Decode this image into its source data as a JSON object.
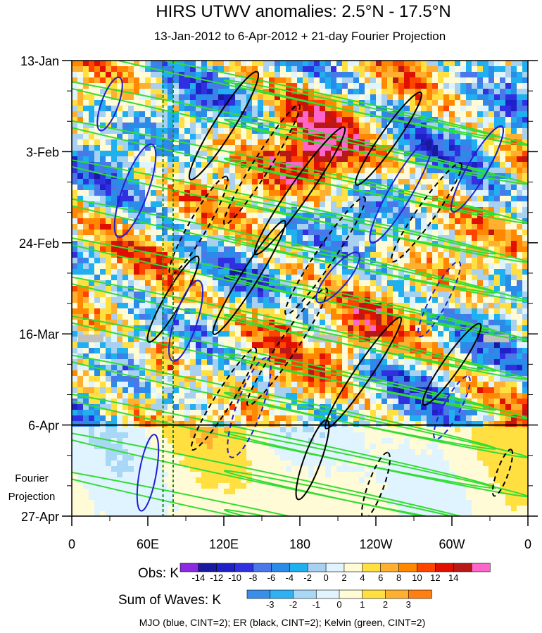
{
  "chart_data": {
    "type": "heatmap",
    "title": "HIRS UTWV anomalies: 2.5°N - 17.5°N",
    "subtitle": "13-Jan-2012 to 6-Apr-2012 + 21-day Fourier Projection",
    "y_tick_labels": [
      "13-Jan",
      "3-Feb",
      "24-Feb",
      "16-Mar",
      "6-Apr",
      "27-Apr"
    ],
    "x_tick_labels": [
      "0",
      "60E",
      "120E",
      "180",
      "120W",
      "60W",
      "0"
    ],
    "xlim": [
      0,
      360
    ],
    "ylim_days": [
      0,
      105
    ],
    "y_tick_days": [
      0,
      21,
      42,
      63,
      84,
      105
    ],
    "x_tick_lon": [
      0,
      60,
      120,
      180,
      240,
      300,
      360
    ],
    "forecast_start_day": 84,
    "projection_label": [
      "Fourier",
      "Projection"
    ],
    "obs_colorbar": {
      "label": "Obs: K",
      "ticks": [
        "-14",
        "-12",
        "-10",
        "-8",
        "-6",
        "-4",
        "-2",
        "0",
        "2",
        "4",
        "6",
        "8",
        "10",
        "12",
        "14"
      ],
      "colors": [
        "#8a2be2",
        "#1a1aa0",
        "#2020c8",
        "#3030e0",
        "#4a78e8",
        "#2a8ce8",
        "#20b0f0",
        "#a8d0f0",
        "#e0f4ff",
        "#fffbd6",
        "#ffe040",
        "#ffb030",
        "#ff8800",
        "#ff4400",
        "#e01000",
        "#b81818",
        "#ff66cc"
      ]
    },
    "waves_colorbar": {
      "label": "Sum of Waves: K",
      "ticks": [
        "-3",
        "-2",
        "-1",
        "0",
        "1",
        "2",
        "3"
      ],
      "colors": [
        "#3a8ee8",
        "#30b0f0",
        "#a8d8f5",
        "#e0f4ff",
        "#fffbd6",
        "#ffe040",
        "#ffb030",
        "#ff8010"
      ]
    },
    "contour_legend": "MJO (blue, CINT=2); ER (black, CINT=2); Kelvin (green, CINT=2)",
    "series": [
      {
        "name": "MJO",
        "color": "#2020d0"
      },
      {
        "name": "ER",
        "color": "#000000"
      },
      {
        "name": "Kelvin",
        "color": "#33dd33"
      }
    ],
    "reference_longitudes": [
      72,
      80
    ]
  }
}
